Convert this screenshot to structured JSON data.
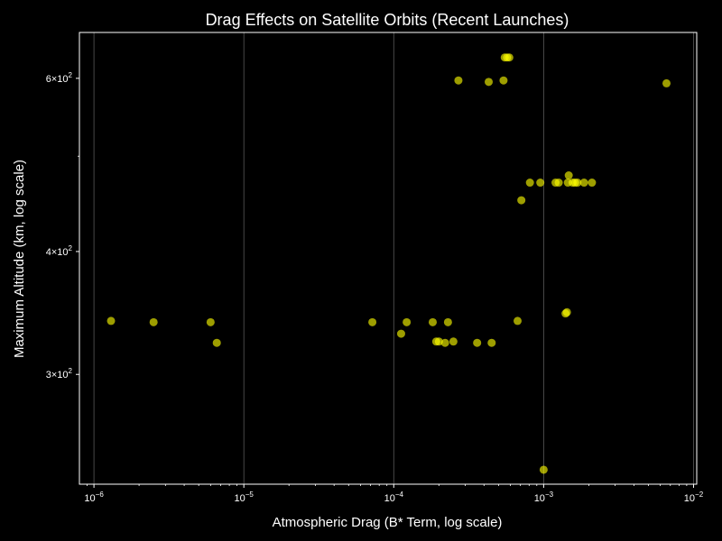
{
  "chart_data": {
    "type": "scatter",
    "title": "Drag Effects on Satellite Orbits (Recent Launches)",
    "xlabel": "Atmospheric Drag (B* Term, log scale)",
    "ylabel": "Maximum Altitude (km, log scale)",
    "xscale": "log",
    "yscale": "log",
    "xlim": [
      8e-07,
      0.0105
    ],
    "ylim": [
      232,
      668
    ],
    "grid": "vertical major only",
    "legend": "none",
    "x_ticks": [
      {
        "value": 1e-06,
        "base": "10",
        "exp": "−6"
      },
      {
        "value": 1e-05,
        "base": "10",
        "exp": "−5"
      },
      {
        "value": 0.0001,
        "base": "10",
        "exp": "−4"
      },
      {
        "value": 0.001,
        "base": "10",
        "exp": "−3"
      },
      {
        "value": 0.01,
        "base": "10",
        "exp": "−2"
      }
    ],
    "y_ticks": [
      {
        "value": 300,
        "mant": "3",
        "base": "10",
        "exp": "2"
      },
      {
        "value": 400,
        "mant": "4",
        "base": "10",
        "exp": "2"
      },
      {
        "value": 600,
        "mant": "6",
        "base": "10",
        "exp": "2"
      }
    ],
    "y_minor_ticks": [
      500
    ],
    "colors": {
      "background": "#000000",
      "point": "#ffff00",
      "text": "#ffffff",
      "grid": "#5a5a5a"
    },
    "points": [
      {
        "x": 1.3e-06,
        "y": 340
      },
      {
        "x": 2.5e-06,
        "y": 339
      },
      {
        "x": 6e-06,
        "y": 339
      },
      {
        "x": 6.6e-06,
        "y": 323
      },
      {
        "x": 7.2e-05,
        "y": 339
      },
      {
        "x": 0.000112,
        "y": 330
      },
      {
        "x": 0.000122,
        "y": 339
      },
      {
        "x": 0.000182,
        "y": 339
      },
      {
        "x": 0.000192,
        "y": 324
      },
      {
        "x": 0.0002,
        "y": 324
      },
      {
        "x": 0.00022,
        "y": 323
      },
      {
        "x": 0.00023,
        "y": 339
      },
      {
        "x": 0.00025,
        "y": 324
      },
      {
        "x": 0.00036,
        "y": 323
      },
      {
        "x": 0.00045,
        "y": 323
      },
      {
        "x": 0.00067,
        "y": 340
      },
      {
        "x": 0.00027,
        "y": 597
      },
      {
        "x": 0.00043,
        "y": 595
      },
      {
        "x": 0.00054,
        "y": 597
      },
      {
        "x": 0.00055,
        "y": 630
      },
      {
        "x": 0.00057,
        "y": 630
      },
      {
        "x": 0.00059,
        "y": 630
      },
      {
        "x": 0.00071,
        "y": 451
      },
      {
        "x": 0.00081,
        "y": 470
      },
      {
        "x": 0.00095,
        "y": 470
      },
      {
        "x": 0.001,
        "y": 240
      },
      {
        "x": 0.0012,
        "y": 470
      },
      {
        "x": 0.00126,
        "y": 470
      },
      {
        "x": 0.0014,
        "y": 346
      },
      {
        "x": 0.00143,
        "y": 347
      },
      {
        "x": 0.00145,
        "y": 470
      },
      {
        "x": 0.00147,
        "y": 478
      },
      {
        "x": 0.00156,
        "y": 470
      },
      {
        "x": 0.00162,
        "y": 470
      },
      {
        "x": 0.00168,
        "y": 470
      },
      {
        "x": 0.00186,
        "y": 470
      },
      {
        "x": 0.0021,
        "y": 470
      },
      {
        "x": 0.0066,
        "y": 593
      }
    ]
  }
}
